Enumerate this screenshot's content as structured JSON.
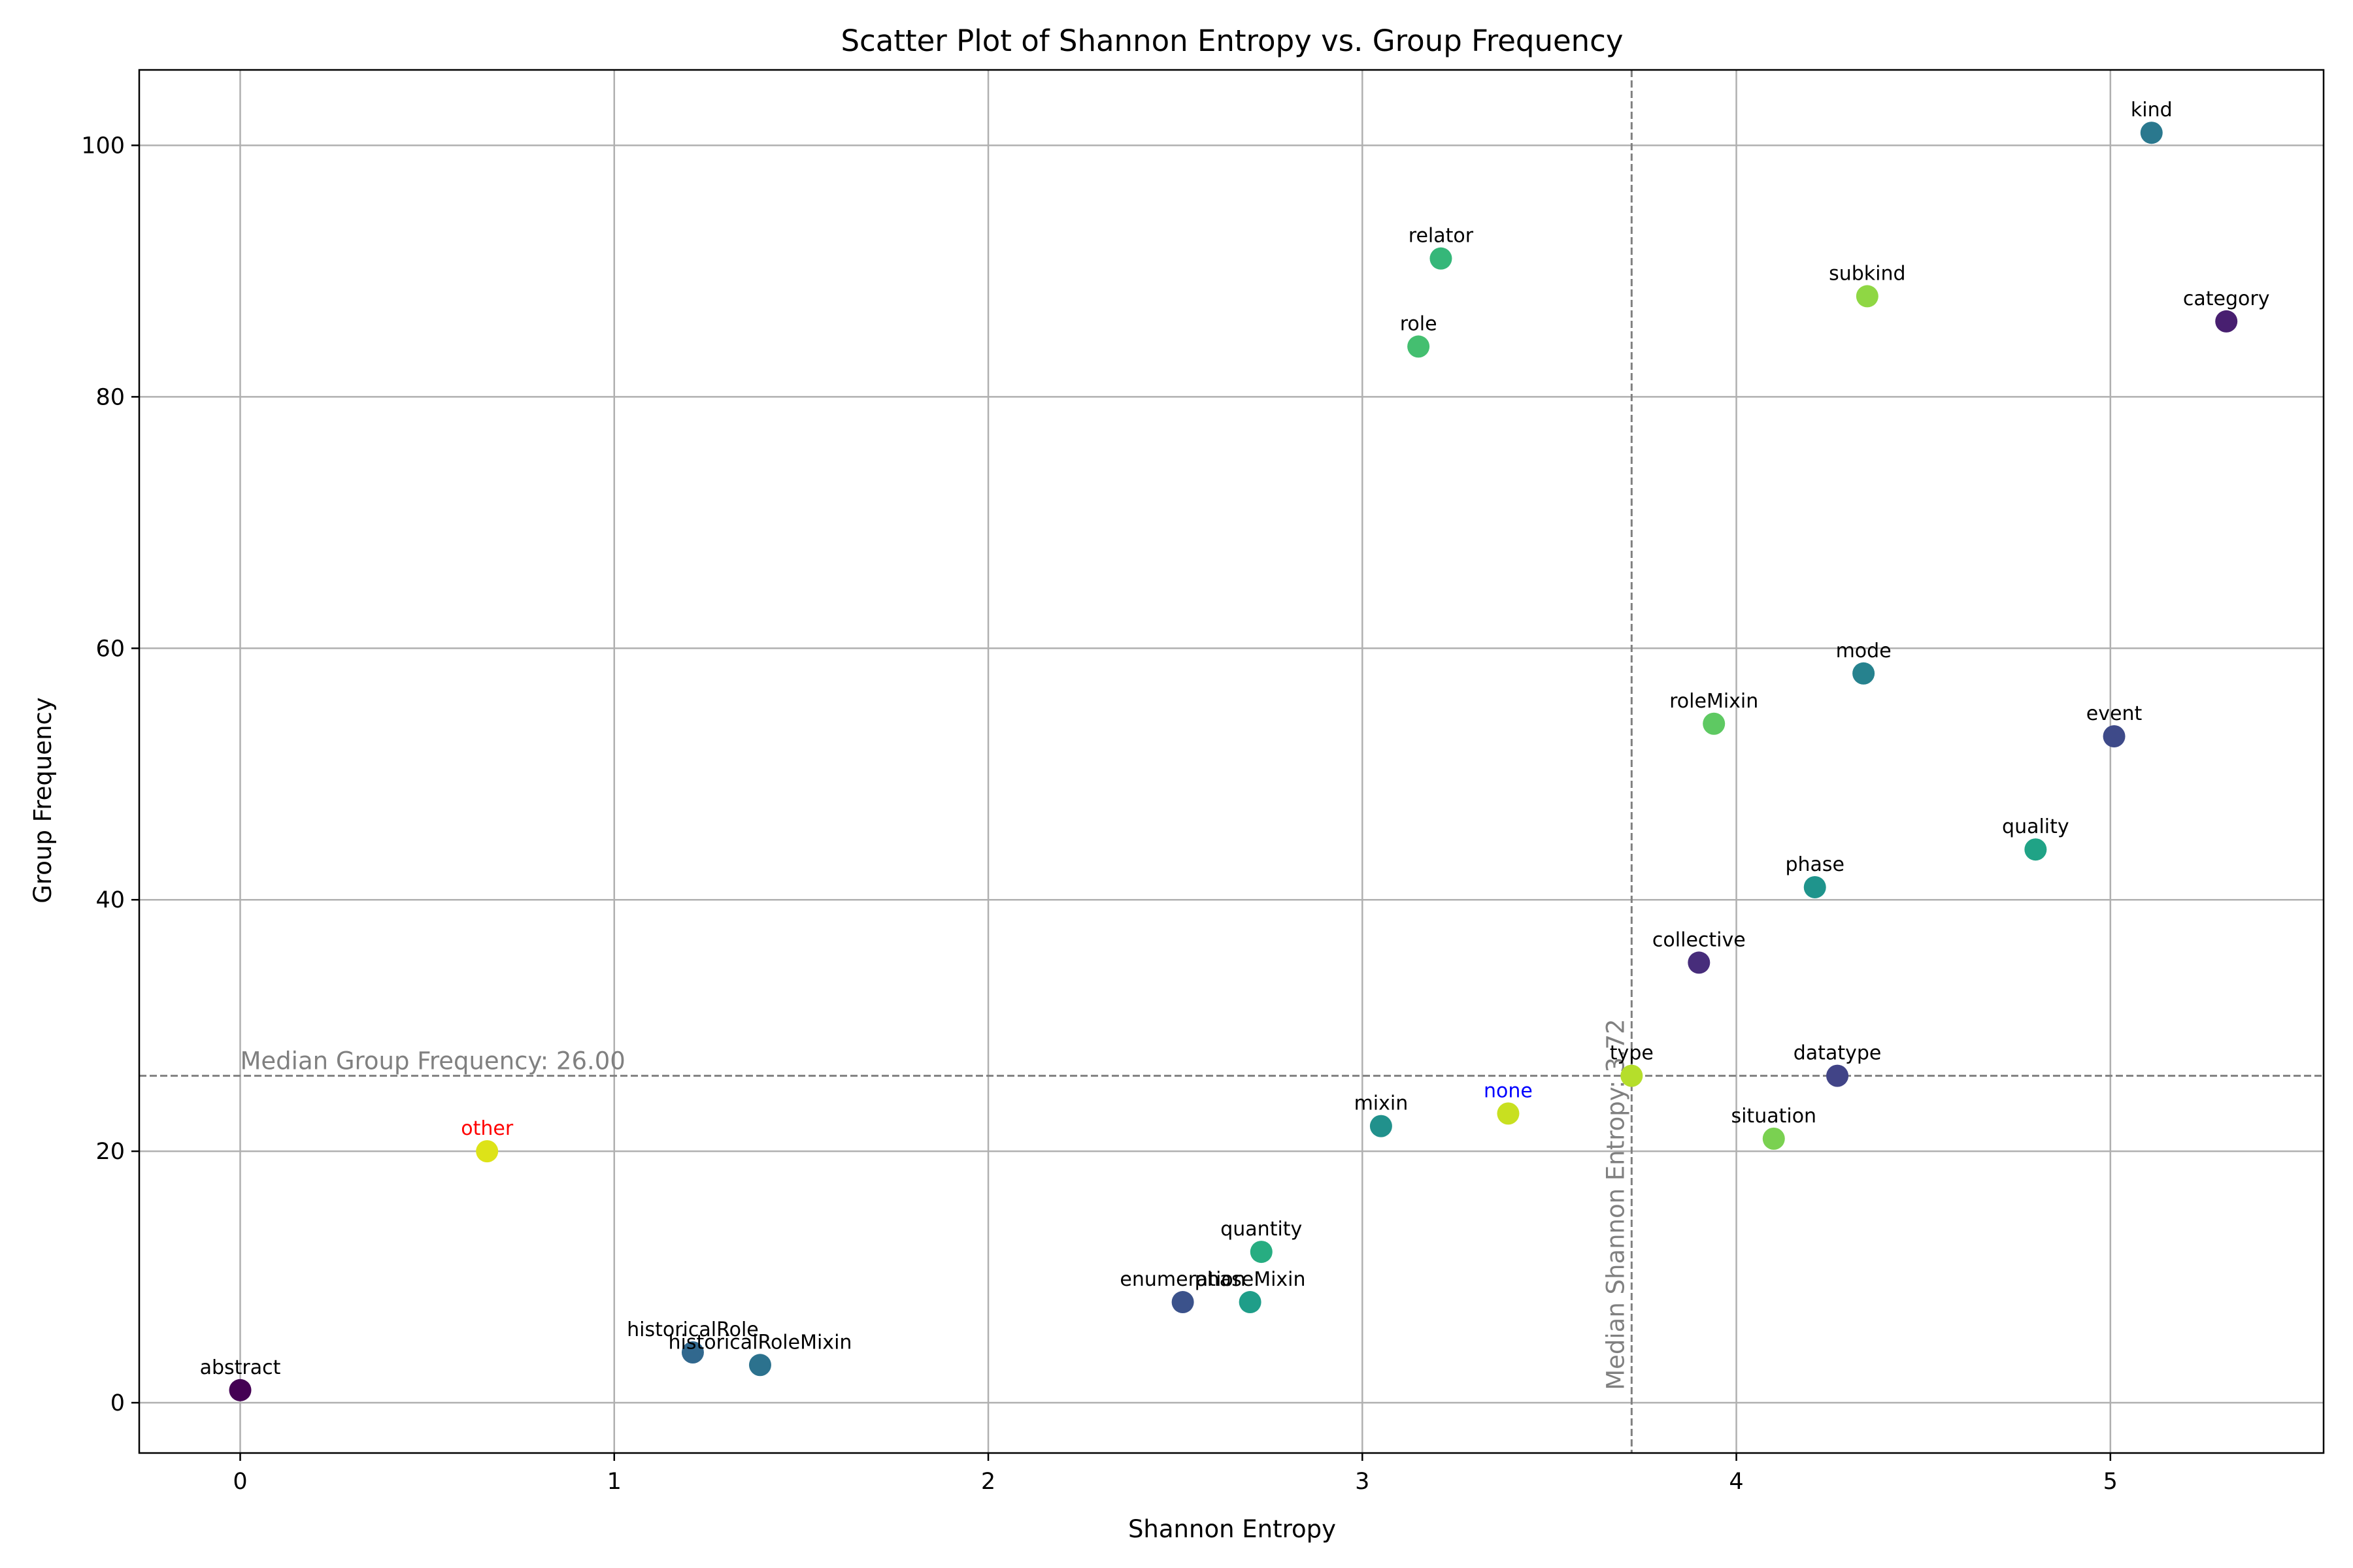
{
  "chart_data": {
    "type": "scatter",
    "title": "Scatter Plot of Shannon Entropy vs. Group Frequency",
    "xlabel": "Shannon Entropy",
    "ylabel": "Group Frequency",
    "xlim": [
      -0.27,
      5.57
    ],
    "ylim": [
      -4,
      106
    ],
    "xticks": [
      0,
      1,
      2,
      3,
      4,
      5
    ],
    "yticks": [
      0,
      20,
      40,
      60,
      80,
      100
    ],
    "grid": true,
    "colormap": "viridis",
    "points": [
      {
        "label": "abstract",
        "x": 0.0,
        "y": 1,
        "color": "#440154",
        "label_color": "#000000"
      },
      {
        "label": "historicalRole",
        "x": 1.21,
        "y": 4,
        "color": "#31688e",
        "label_color": "#000000"
      },
      {
        "label": "historicalRoleMixin",
        "x": 1.39,
        "y": 3,
        "color": "#2c728e",
        "label_color": "#000000"
      },
      {
        "label": "enumeration",
        "x": 2.52,
        "y": 8,
        "color": "#3b528b",
        "label_color": "#000000"
      },
      {
        "label": "phaseMixin",
        "x": 2.7,
        "y": 8,
        "color": "#1f9e89",
        "label_color": "#000000"
      },
      {
        "label": "quantity",
        "x": 2.73,
        "y": 12,
        "color": "#27ad81",
        "label_color": "#000000"
      },
      {
        "label": "mixin",
        "x": 3.05,
        "y": 22,
        "color": "#21918c",
        "label_color": "#000000"
      },
      {
        "label": "none",
        "x": 3.39,
        "y": 23,
        "color": "#c8e020",
        "label_color": "#0000ff"
      },
      {
        "label": "other",
        "x": 0.66,
        "y": 20,
        "color": "#dde318",
        "label_color": "#ff0000"
      },
      {
        "label": "type",
        "x": 3.72,
        "y": 26,
        "color": "#b5de2b",
        "label_color": "#000000"
      },
      {
        "label": "datatype",
        "x": 4.27,
        "y": 26,
        "color": "#414487",
        "label_color": "#000000"
      },
      {
        "label": "situation",
        "x": 4.1,
        "y": 21,
        "color": "#7ad151",
        "label_color": "#000000"
      },
      {
        "label": "collective",
        "x": 3.9,
        "y": 35,
        "color": "#472d7b",
        "label_color": "#000000"
      },
      {
        "label": "phase",
        "x": 4.21,
        "y": 41,
        "color": "#1f948c",
        "label_color": "#000000"
      },
      {
        "label": "quality",
        "x": 4.8,
        "y": 44,
        "color": "#20a386",
        "label_color": "#000000"
      },
      {
        "label": "event",
        "x": 5.01,
        "y": 53,
        "color": "#3e4a89",
        "label_color": "#000000"
      },
      {
        "label": "roleMixin",
        "x": 3.94,
        "y": 54,
        "color": "#5ec962",
        "label_color": "#000000"
      },
      {
        "label": "mode",
        "x": 4.34,
        "y": 58,
        "color": "#26828e",
        "label_color": "#000000"
      },
      {
        "label": "role",
        "x": 3.15,
        "y": 84,
        "color": "#44bf70",
        "label_color": "#000000"
      },
      {
        "label": "relator",
        "x": 3.21,
        "y": 91,
        "color": "#35b779",
        "label_color": "#000000"
      },
      {
        "label": "subkind",
        "x": 4.35,
        "y": 88,
        "color": "#8fd744",
        "label_color": "#000000"
      },
      {
        "label": "category",
        "x": 5.31,
        "y": 86,
        "color": "#481f70",
        "label_color": "#000000"
      },
      {
        "label": "kind",
        "x": 5.11,
        "y": 101,
        "color": "#2a788e",
        "label_color": "#000000"
      }
    ],
    "reference_lines": {
      "median_x": 3.72,
      "median_x_label": "Median Shannon Entropy: 3.72",
      "median_y": 26,
      "median_y_label": "Median Group Frequency: 26.00",
      "color": "#808080"
    }
  }
}
